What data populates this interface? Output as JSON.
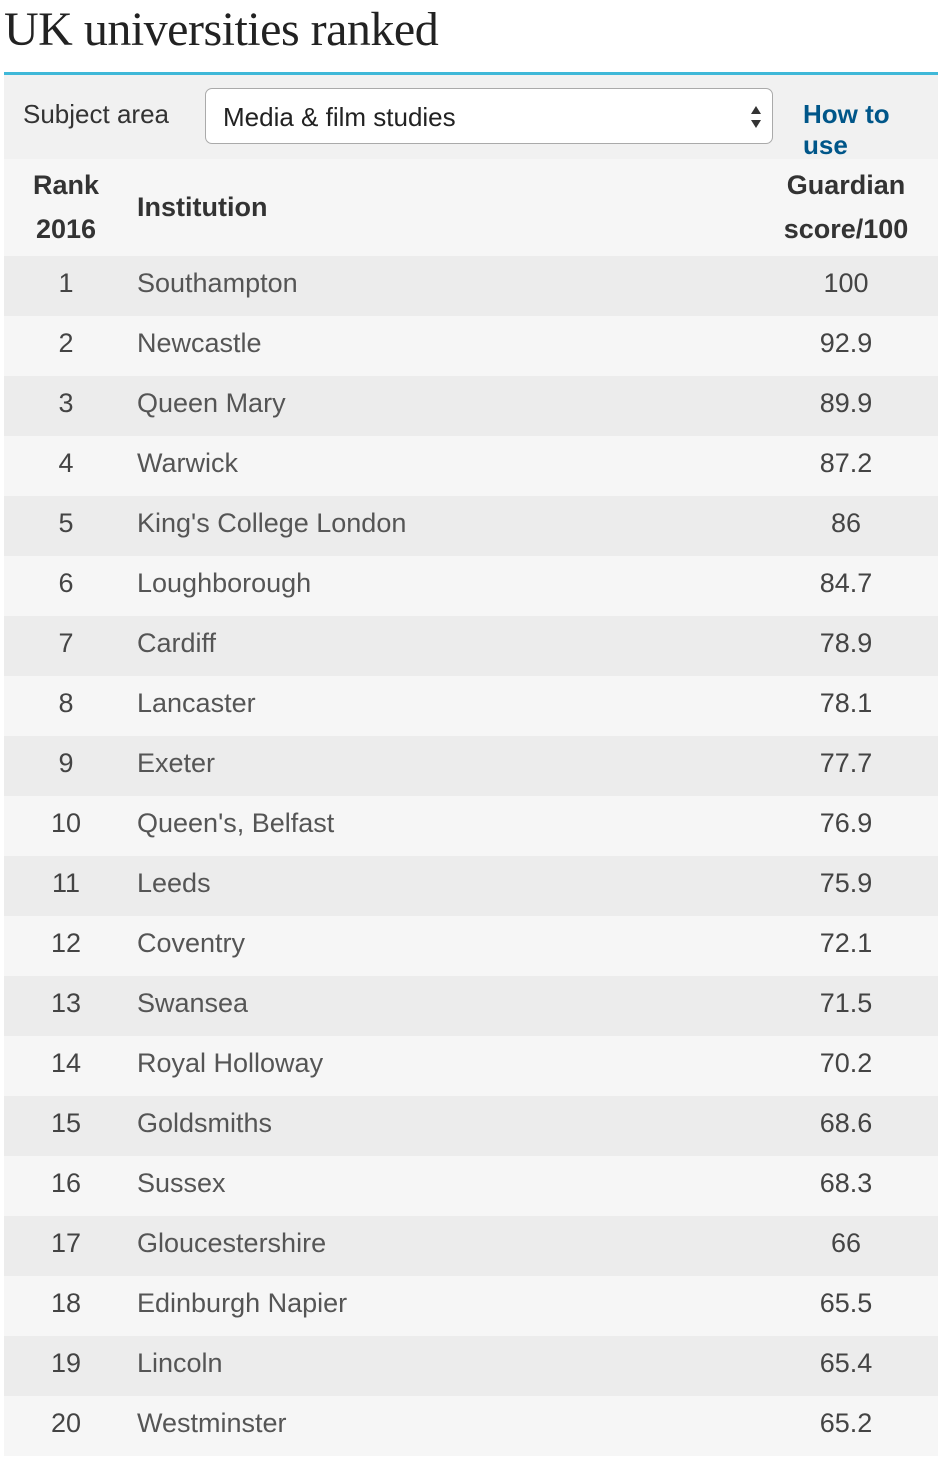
{
  "header": {
    "title": "UK universities ranked"
  },
  "filter": {
    "label": "Subject area",
    "selected": "Media & film studies",
    "link": "How to use"
  },
  "table": {
    "columns": [
      "Rank 2016",
      "Institution",
      "Guardian score/100"
    ],
    "rows": [
      [
        1,
        "Southampton",
        100
      ],
      [
        2,
        "Newcastle",
        92.9
      ],
      [
        3,
        "Queen Mary",
        89.9
      ],
      [
        4,
        "Warwick",
        87.2
      ],
      [
        5,
        "King's College London",
        86
      ],
      [
        6,
        "Loughborough",
        84.7
      ],
      [
        7,
        "Cardiff",
        78.9
      ],
      [
        8,
        "Lancaster",
        78.1
      ],
      [
        9,
        "Exeter",
        77.7
      ],
      [
        10,
        "Queen's, Belfast",
        76.9
      ],
      [
        11,
        "Leeds",
        75.9
      ],
      [
        12,
        "Coventry",
        72.1
      ],
      [
        13,
        "Swansea",
        71.5
      ],
      [
        14,
        "Royal Holloway",
        70.2
      ],
      [
        15,
        "Goldsmiths",
        68.6
      ],
      [
        16,
        "Sussex",
        68.3
      ],
      [
        17,
        "Gloucestershire",
        66
      ],
      [
        18,
        "Edinburgh Napier",
        65.5
      ],
      [
        19,
        "Lincoln",
        65.4
      ],
      [
        20,
        "Westminster",
        65.2
      ]
    ]
  }
}
